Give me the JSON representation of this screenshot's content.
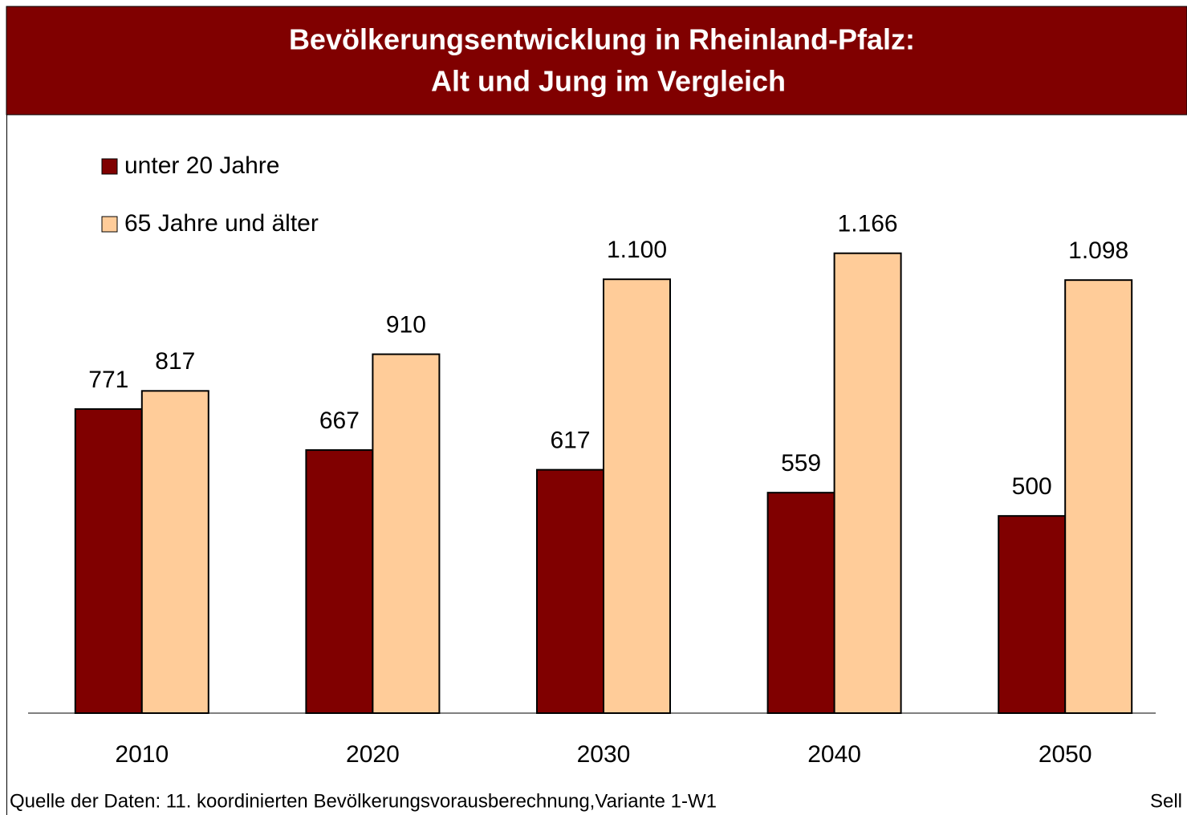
{
  "chart_data": {
    "type": "bar",
    "title": [
      "Bevölkerungsentwicklung in Rheinland-Pfalz:",
      "Alt und Jung im Vergleich"
    ],
    "categories": [
      "2010",
      "2020",
      "2030",
      "2040",
      "2050"
    ],
    "series": [
      {
        "name": "unter 20 Jahre",
        "color": "#800000",
        "values": [
          771,
          667,
          617,
          559,
          500
        ],
        "value_labels": [
          "771",
          "667",
          "617",
          "559",
          "500"
        ]
      },
      {
        "name": "65 Jahre und älter",
        "color": "#ffcc99",
        "values": [
          817,
          910,
          1100,
          1166,
          1098
        ],
        "value_labels": [
          "817",
          "910",
          "1.100",
          "1.166",
          "1.098"
        ]
      }
    ],
    "ylim": [
      0,
      1800
    ],
    "grid": false,
    "legend": "top-left",
    "source": "Quelle der Daten: 11. koordinierten Bevölkerungsvorausberechnung,Variante 1-W1",
    "author": "Sell"
  }
}
